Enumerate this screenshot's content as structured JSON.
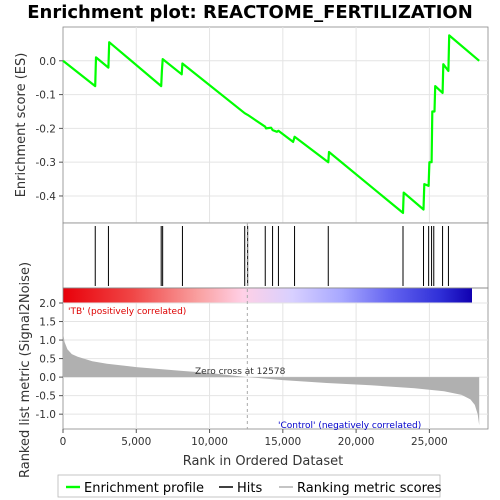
{
  "title": "Enrichment plot: REACTOME_FERTILIZATION",
  "chart_data": [
    {
      "panel": "enrichment-profile",
      "type": "line",
      "ylabel": "Enrichment score (ES)",
      "ylim": [
        -0.48,
        0.1
      ],
      "xlim": [
        0,
        29000
      ],
      "yticks": [
        "0.0",
        "-0.1",
        "-0.2",
        "-0.3",
        "-0.4"
      ],
      "ytick_values": [
        0.0,
        -0.1,
        -0.2,
        -0.3,
        -0.4
      ],
      "grid": true,
      "color": "#00ff00",
      "series": [
        {
          "x": [
            0,
            2200,
            2250,
            3100,
            3150,
            6700,
            6750,
            6800,
            8100,
            8150,
            12400,
            12600,
            13800,
            13850,
            14200,
            14300,
            14600,
            14700,
            15700,
            15800,
            18100,
            18150,
            23200,
            23250,
            24600,
            24650,
            24950,
            25000,
            25150,
            25200,
            25350,
            25400,
            25900,
            25950,
            26300,
            26350,
            28400
          ],
          "y": [
            0.0,
            -0.075,
            0.01,
            -0.02,
            0.055,
            -0.075,
            -0.03,
            0.005,
            -0.04,
            -0.008,
            -0.155,
            -0.16,
            -0.195,
            -0.2,
            -0.198,
            -0.205,
            -0.21,
            -0.207,
            -0.24,
            -0.225,
            -0.3,
            -0.27,
            -0.45,
            -0.39,
            -0.44,
            -0.365,
            -0.37,
            -0.3,
            -0.3,
            -0.15,
            -0.15,
            -0.075,
            -0.095,
            -0.01,
            -0.03,
            0.075,
            0.0
          ]
        }
      ]
    },
    {
      "panel": "hits",
      "type": "scatter",
      "x": [
        2200,
        3100,
        6700,
        6800,
        8150,
        12400,
        12600,
        13800,
        14300,
        14700,
        15800,
        18100,
        23200,
        24600,
        24950,
        25150,
        25300,
        25900,
        26300
      ]
    },
    {
      "panel": "ranking-metric",
      "type": "area",
      "xlabel": "Rank in Ordered Dataset",
      "ylabel": "Ranked list metric (Signal2Noise)",
      "ylim": [
        -1.4,
        2.0
      ],
      "yticks": [
        "2.0",
        "1.5",
        "1.0",
        "0.5",
        "0.0",
        "-0.5",
        "-1.0"
      ],
      "ytick_values": [
        2.0,
        1.5,
        1.0,
        0.5,
        0.0,
        -0.5,
        -1.0
      ],
      "xticks": [
        "0",
        "5,000",
        "10,000",
        "15,000",
        "20,000",
        "25,000"
      ],
      "xtick_values": [
        0,
        5000,
        10000,
        15000,
        20000,
        25000
      ],
      "x": [
        0,
        100,
        300,
        600,
        1000,
        2000,
        3000,
        5000,
        8000,
        10000,
        12578,
        15000,
        18000,
        21000,
        24000,
        26000,
        27200,
        27800,
        28100,
        28300,
        28400
      ],
      "y": [
        1.2,
        0.95,
        0.75,
        0.62,
        0.55,
        0.43,
        0.36,
        0.27,
        0.17,
        0.11,
        0.0,
        -0.08,
        -0.16,
        -0.22,
        -0.3,
        -0.38,
        -0.48,
        -0.6,
        -0.75,
        -1.0,
        -1.3
      ],
      "zero_cross_label": "Zero cross at 12578",
      "pos_label": "'TB' (positively correlated)",
      "neg_label": "'Control' (negatively correlated)",
      "pos_color": "#dd0000",
      "neg_color": "#0000cc",
      "fill_color": "#b0b0b0"
    }
  ],
  "legend": {
    "items": [
      {
        "label": "Enrichment profile",
        "color": "#00ff00"
      },
      {
        "label": "Hits",
        "color": "#000000"
      },
      {
        "label": "Ranking metric scores",
        "color": "#b0b0b0"
      }
    ]
  }
}
